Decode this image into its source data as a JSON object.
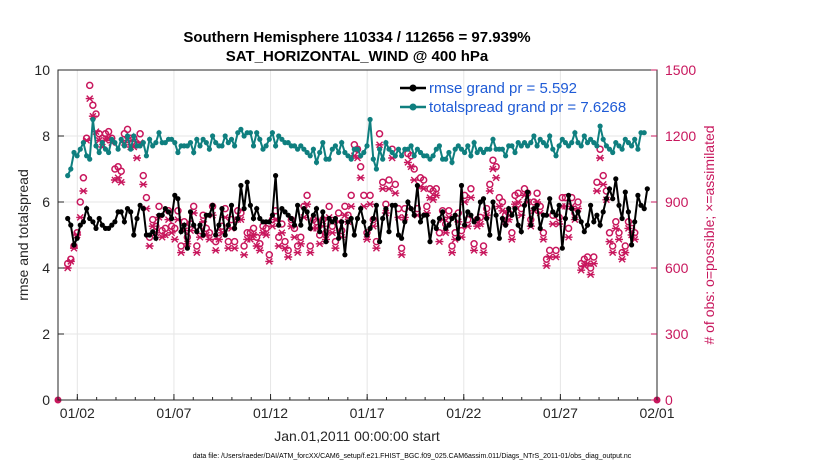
{
  "chart_data": {
    "type": "line",
    "title": "Southern Hemisphere 110334 / 112656 = 97.939%",
    "subtitle": "SAT_HORIZONTAL_WIND @ 400 hPa",
    "xlabel": "Jan.01,2011 00:00:00 start",
    "ylabel_left": "rmse and totalspread",
    "ylabel_right": "# of obs: o=possible; ×=assimilated",
    "footer": "data file: /Users/raeder/DAI/ATM_forcXX/CAM6_setup/f.e21.FHIST_BGC.f09_025.CAM6assim.011/Diags_NTrS_2011-01/obs_diag_output.nc",
    "x_ticks": [
      {
        "label": "01/02",
        "day": 2
      },
      {
        "label": "01/07",
        "day": 7
      },
      {
        "label": "01/12",
        "day": 12
      },
      {
        "label": "01/17",
        "day": 17
      },
      {
        "label": "01/22",
        "day": 22
      },
      {
        "label": "01/27",
        "day": 27
      },
      {
        "label": "02/01",
        "day": 32
      }
    ],
    "xlim_days": [
      1.0,
      32.0
    ],
    "ylim_left": [
      0,
      10
    ],
    "yticks_left": [
      "0",
      "2",
      "4",
      "6",
      "8",
      "10"
    ],
    "ylim_right": [
      0,
      1500
    ],
    "yticks_right": [
      "0",
      "300",
      "600",
      "900",
      "1200",
      "1500"
    ],
    "legend": {
      "placement": "top-right",
      "entries": [
        "rmse grand pr = 5.592",
        "totalspread grand pr = 7.6268"
      ]
    },
    "colors": {
      "rmse": "#000000",
      "totalspread": "#0f7f7f",
      "obs": "#c8175d"
    },
    "series": [
      {
        "name": "rmse grand pr = 5.592",
        "values": [
          5.5,
          5.3,
          4.7,
          4.9,
          5.3,
          5.4,
          5.8,
          5.5,
          5.4,
          5.2,
          5.5,
          5.3,
          5.2,
          5.2,
          5.3,
          5.4,
          5.7,
          5.7,
          5.4,
          5.8,
          5.7,
          5.0,
          5.5,
          5.9,
          5.8,
          5.0,
          5.0,
          5.1,
          4.9,
          5.6,
          5.6,
          5.8,
          5.7,
          5.5,
          6.2,
          6.1,
          5.1,
          5.3,
          4.6,
          5.7,
          5.3,
          5.1,
          5.3,
          5.0,
          5.6,
          5.6,
          5.9,
          5.0,
          5.3,
          5.8,
          5.0,
          5.3,
          5.9,
          5.2,
          5.5,
          6.5,
          5.8,
          6.6,
          5.9,
          5.5,
          5.8,
          5.5,
          5.4,
          5.4,
          5.4,
          5.6,
          6.8,
          5.3,
          5.8,
          5.7,
          5.6,
          5.5,
          5.3,
          5.9,
          5.3,
          5.8,
          5.7,
          5.2,
          5.6,
          5.8,
          5.1,
          5.7,
          4.8,
          5.5,
          5.4,
          5.5,
          4.9,
          5.4,
          4.4,
          5.4,
          5.5,
          5.0,
          5.5,
          5.8,
          5.4,
          5.0,
          5.2,
          5.5,
          5.9,
          4.8,
          5.5,
          5.8,
          5.1,
          5.9,
          5.9,
          5.0,
          4.9,
          5.4,
          6.0,
          5.8,
          5.6,
          6.5,
          5.4,
          5.6,
          5.6,
          4.8,
          5.4,
          5.2,
          5.5,
          5.7,
          5.2,
          5.3,
          5.5,
          5.6,
          4.9,
          6.5,
          5.3,
          5.7,
          5.6,
          5.4,
          5.5,
          6.0,
          6.1,
          5.5,
          5.0,
          6.0,
          5.6,
          4.9,
          5.5,
          5.3,
          5.8,
          5.6,
          5.8,
          5.3,
          5.1,
          5.9,
          6.3,
          5.3,
          5.8,
          5.9,
          5.2,
          5.6,
          5.6,
          6.1,
          5.7,
          5.6,
          5.9,
          4.6,
          5.5,
          6.2,
          5.8,
          5.5,
          5.7,
          5.4,
          5.1,
          5.3,
          5.9,
          5.4,
          5.6,
          5.3,
          5.7,
          6.1,
          6.4,
          6.1,
          6.7,
          5.9,
          5.5,
          6.3,
          5.7,
          4.7,
          5.4,
          6.2,
          5.9,
          5.8,
          6.4
        ]
      },
      {
        "name": "totalspread grand pr = 7.6268",
        "values": [
          6.8,
          7.0,
          7.5,
          7.4,
          7.6,
          7.8,
          7.4,
          7.3,
          8.5,
          7.7,
          7.5,
          7.8,
          7.6,
          7.5,
          7.9,
          7.8,
          7.6,
          7.9,
          7.7,
          8.0,
          7.6,
          8.0,
          7.7,
          7.7,
          7.8,
          7.4,
          7.9,
          7.7,
          7.8,
          8.1,
          7.8,
          7.8,
          7.9,
          7.9,
          7.8,
          7.5,
          7.7,
          7.7,
          7.7,
          7.8,
          7.5,
          7.9,
          7.7,
          7.9,
          7.8,
          7.6,
          8.0,
          7.8,
          7.7,
          7.7,
          8.0,
          7.8,
          7.9,
          7.7,
          8.1,
          8.2,
          8.0,
          8.1,
          8.1,
          7.7,
          8.1,
          7.9,
          7.6,
          7.7,
          7.9,
          8.1,
          7.7,
          8.0,
          7.9,
          7.8,
          7.8,
          7.7,
          7.7,
          7.6,
          7.7,
          7.6,
          7.5,
          7.4,
          7.6,
          7.2,
          7.5,
          7.8,
          7.3,
          7.3,
          7.6,
          7.7,
          7.5,
          7.8,
          7.5,
          7.4,
          7.3,
          7.6,
          7.6,
          7.4,
          7.5,
          7.7,
          8.5,
          7.3,
          7.0,
          7.6,
          7.3,
          7.8,
          7.6,
          7.5,
          7.4,
          7.6,
          7.4,
          7.6,
          7.6,
          7.7,
          7.4,
          7.6,
          7.5,
          7.4,
          7.4,
          7.3,
          7.4,
          7.6,
          7.7,
          7.3,
          7.3,
          7.5,
          7.2,
          7.6,
          7.7,
          7.6,
          7.5,
          7.7,
          7.4,
          7.8,
          7.5,
          7.6,
          7.5,
          7.6,
          7.6,
          7.9,
          7.6,
          7.6,
          7.6,
          7.4,
          7.7,
          7.7,
          7.5,
          7.8,
          7.7,
          7.8,
          7.7,
          7.8,
          8.0,
          7.7,
          7.9,
          7.8,
          7.7,
          8.0,
          7.6,
          7.4,
          7.7,
          7.9,
          7.8,
          7.7,
          7.8,
          8.1,
          7.8,
          7.7,
          8.0,
          7.8,
          7.9,
          7.8,
          7.7,
          8.3,
          7.9,
          7.7,
          7.6,
          7.5,
          7.8,
          7.7,
          7.6,
          7.9,
          7.8,
          7.7,
          7.9,
          7.6,
          8.1,
          8.1
        ]
      },
      {
        "name": "",
        "marker": "o",
        "values": [
          620,
          640,
          700,
          760,
          900,
          1010,
          1190,
          1430,
          1340,
          1300,
          1210,
          1190,
          1210,
          1220,
          1190,
          1050,
          1060,
          1040,
          1210,
          1230,
          1190,
          1190,
          1160,
          1210,
          1020,
          920,
          740,
          820,
          790,
          880,
          770,
          780,
          860,
          790,
          780,
          860,
          700,
          810,
          740,
          800,
          880,
          700,
          770,
          840,
          780,
          760,
          880,
          720,
          760,
          790,
          870,
          720,
          820,
          720,
          860,
          850,
          700,
          760,
          760,
          780,
          740,
          710,
          790,
          780,
          660,
          820,
          860,
          740,
          800,
          720,
          680,
          820,
          780,
          700,
          740,
          880,
          930,
          700,
          820,
          810,
          750,
          820,
          760,
          880,
          790,
          720,
          850,
          770,
          880,
          840,
          930,
          1160,
          1140,
          1060,
          930,
          760,
          930,
          820,
          720,
          1210,
          990,
          890,
          1000,
          1140,
          980,
          870,
          690,
          870,
          1120,
          1110,
          1050,
          870,
          1010,
          1000,
          880,
          960,
          950,
          960,
          760,
          860,
          800,
          860,
          700,
          760,
          850,
          770,
          930,
          820,
          960,
          710,
          820,
          830,
          700,
          870,
          980,
          1090,
          1060,
          920,
          900,
          840,
          850,
          760,
          930,
          940,
          870,
          960,
          940,
          820,
          900,
          940,
          880,
          760,
          640,
          680,
          840,
          680,
          830,
          920,
          920,
          780,
          920,
          850,
          900,
          620,
          640,
          650,
          600,
          650,
          990,
          1140,
          1020,
          950,
          760,
          700,
          810,
          760,
          670,
          700,
          810,
          780,
          760
        ]
      },
      {
        "name": "",
        "marker": "x",
        "values": [
          600,
          630,
          690,
          750,
          830,
          950,
          1180,
          1370,
          1290,
          1220,
          1180,
          1150,
          1180,
          1190,
          1170,
          1000,
          1010,
          990,
          1170,
          1180,
          1150,
          1150,
          1100,
          1170,
          980,
          870,
          700,
          790,
          760,
          830,
          740,
          750,
          820,
          760,
          730,
          820,
          670,
          770,
          710,
          770,
          850,
          670,
          740,
          810,
          750,
          730,
          840,
          680,
          730,
          760,
          830,
          690,
          780,
          690,
          820,
          820,
          660,
          730,
          730,
          750,
          700,
          680,
          760,
          750,
          630,
          790,
          820,
          700,
          760,
          690,
          650,
          790,
          740,
          670,
          710,
          830,
          890,
          670,
          780,
          780,
          710,
          790,
          730,
          830,
          760,
          690,
          810,
          740,
          840,
          810,
          880,
          1110,
          1100,
          1010,
          880,
          730,
          890,
          790,
          690,
          1160,
          960,
          850,
          960,
          1100,
          940,
          830,
          660,
          830,
          1080,
          1060,
          1000,
          840,
          970,
          960,
          850,
          920,
          910,
          930,
          720,
          820,
          760,
          830,
          670,
          730,
          810,
          740,
          900,
          790,
          920,
          680,
          790,
          800,
          670,
          840,
          950,
          1050,
          1010,
          880,
          860,
          810,
          820,
          730,
          890,
          900,
          840,
          930,
          900,
          790,
          860,
          900,
          850,
          730,
          610,
          650,
          800,
          650,
          800,
          880,
          880,
          740,
          880,
          820,
          870,
          590,
          610,
          620,
          570,
          620,
          950,
          1100,
          980,
          910,
          720,
          670,
          780,
          730,
          640,
          670,
          780,
          750,
          730
        ]
      }
    ]
  }
}
